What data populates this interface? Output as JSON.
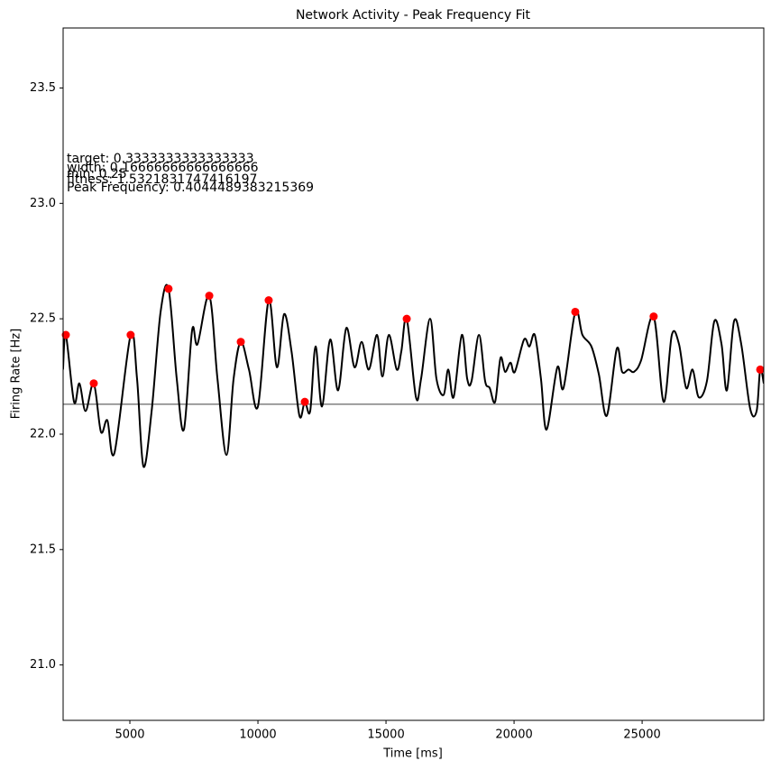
{
  "chart_data": {
    "type": "line",
    "title": "Network Activity - Peak Frequency Fit",
    "xlabel": "Time [ms]",
    "ylabel": "Firing Rate [Hz]",
    "xlim": [
      2394,
      29750
    ],
    "ylim": [
      20.76,
      23.76
    ],
    "xticks": [
      5000,
      10000,
      15000,
      20000,
      25000
    ],
    "yticks": [
      {
        "value": 21,
        "label": "21.0"
      },
      21.5,
      {
        "value": 22,
        "label": "22.0"
      },
      22.5,
      {
        "value": 23,
        "label": "23.0"
      },
      23.5
    ],
    "reference_line": {
      "value": 22.13,
      "color": "#808080"
    },
    "series": [
      {
        "color": "#000000",
        "marker": "none",
        "x": [
          2390,
          2500,
          2820,
          3030,
          3270,
          3590,
          3870,
          4120,
          4400,
          5030,
          5280,
          5530,
          5850,
          6200,
          6510,
          6830,
          7110,
          7430,
          7640,
          8100,
          8420,
          8770,
          9050,
          9330,
          9650,
          10000,
          10420,
          10740,
          11020,
          11310,
          11620,
          11830,
          12040,
          12250,
          12500,
          12820,
          13130,
          13450,
          13770,
          14050,
          14330,
          14650,
          14860,
          15110,
          15420,
          15600,
          15810,
          16170,
          16370,
          16720,
          16970,
          17250,
          17430,
          17640,
          17960,
          18170,
          18340,
          18630,
          18870,
          19050,
          19260,
          19470,
          19650,
          19860,
          20030,
          20390,
          20600,
          20810,
          21050,
          21270,
          21690,
          21930,
          22390,
          22670,
          23020,
          23310,
          23620,
          24010,
          24220,
          24470,
          24680,
          24960,
          25450,
          25840,
          26160,
          26440,
          26720,
          26970,
          27210,
          27530,
          27820,
          28100,
          28310,
          28590,
          28870,
          29220,
          29470,
          29610,
          29750
        ],
        "values": [
          22.28,
          22.43,
          22.14,
          22.22,
          22.1,
          22.22,
          22.01,
          22.06,
          21.92,
          22.43,
          22.24,
          21.86,
          22.1,
          22.53,
          22.63,
          22.24,
          22.02,
          22.45,
          22.39,
          22.6,
          22.24,
          21.91,
          22.24,
          22.4,
          22.28,
          22.12,
          22.58,
          22.29,
          22.52,
          22.36,
          22.08,
          22.14,
          22.1,
          22.38,
          22.12,
          22.41,
          22.19,
          22.46,
          22.29,
          22.4,
          22.28,
          22.43,
          22.25,
          22.43,
          22.28,
          22.36,
          22.5,
          22.16,
          22.24,
          22.5,
          22.24,
          22.17,
          22.28,
          22.16,
          22.43,
          22.24,
          22.23,
          22.43,
          22.23,
          22.2,
          22.14,
          22.33,
          22.27,
          22.31,
          22.27,
          22.41,
          22.38,
          22.43,
          22.24,
          22.02,
          22.29,
          22.2,
          22.53,
          22.43,
          22.38,
          22.26,
          22.08,
          22.37,
          22.27,
          22.28,
          22.27,
          22.32,
          22.51,
          22.14,
          22.43,
          22.39,
          22.2,
          22.28,
          22.16,
          22.23,
          22.49,
          22.39,
          22.19,
          22.49,
          22.39,
          22.11,
          22.1,
          22.28,
          22.22
        ]
      },
      {
        "color": "#ff0000",
        "marker": "o",
        "x": [
          2500,
          3590,
          5030,
          6510,
          8100,
          9330,
          10420,
          11830,
          15810,
          22390,
          25450,
          29610
        ],
        "values": [
          22.43,
          22.22,
          22.43,
          22.63,
          22.6,
          22.4,
          22.58,
          22.14,
          22.5,
          22.53,
          22.51,
          22.28
        ]
      }
    ],
    "annotations": [
      "target: 0.3333333333333333",
      "width: 0.16666666666666666",
      "min: 0.25",
      "fitness: 1.5321831747416197",
      "Peak Frequency: 0.4044489383215369"
    ]
  }
}
